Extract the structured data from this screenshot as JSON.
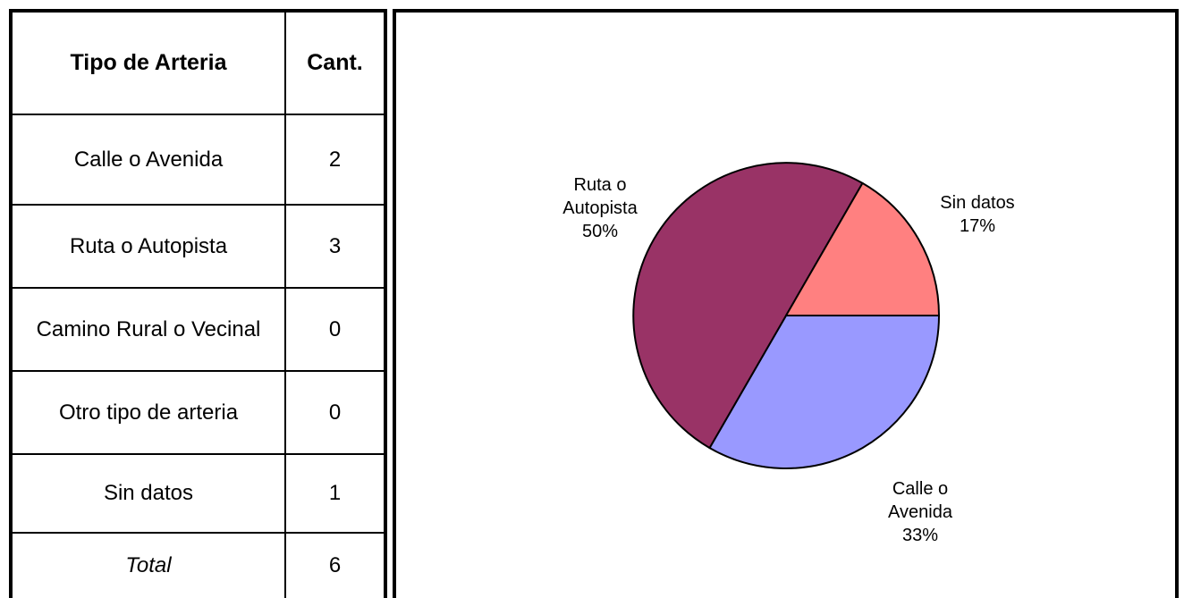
{
  "table": {
    "headers": [
      "Tipo de Arteria",
      "Cant."
    ],
    "rows": [
      {
        "label": "Calle o Avenida",
        "value": "2"
      },
      {
        "label": "Ruta o Autopista",
        "value": "3"
      },
      {
        "label": "Camino Rural o Vecinal",
        "value": "0"
      },
      {
        "label": "Otro tipo de arteria",
        "value": "0"
      },
      {
        "label": "Sin datos",
        "value": "1"
      }
    ],
    "total": {
      "label": "Total",
      "value": "6"
    }
  },
  "chart_data": {
    "type": "pie",
    "start_angle_deg": 0,
    "direction": "clockwise",
    "slices": [
      {
        "name": "Calle o Avenida",
        "name_lines": [
          "Calle o",
          "Avenida"
        ],
        "value": 2,
        "percent": "33%",
        "color": "#9999ff"
      },
      {
        "name": "Ruta o Autopista",
        "name_lines": [
          "Ruta o",
          "Autopista"
        ],
        "value": 3,
        "percent": "50%",
        "color": "#993366"
      },
      {
        "name": "Sin datos",
        "name_lines": [
          "Sin datos"
        ],
        "value": 1,
        "percent": "17%",
        "color": "#ff8080"
      }
    ]
  }
}
